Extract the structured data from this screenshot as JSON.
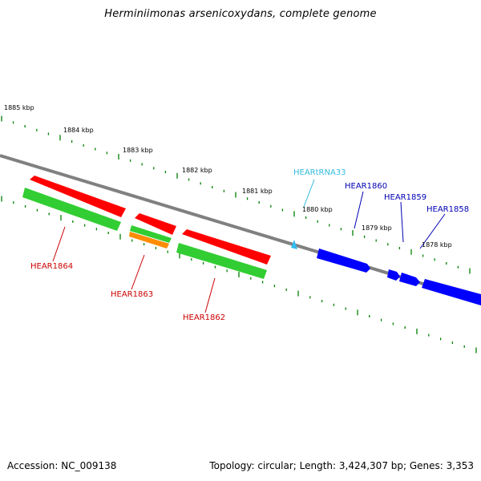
{
  "title": "Herminiimonas arsenicoxydans, complete genome",
  "accession": "Accession: NC_009138",
  "summary": "Topology: circular; Length: 3,424,307 bp; Genes: 3,353",
  "colors": {
    "backbone": "#808080",
    "ticks": "#008000",
    "forward_genes": "#ff0000",
    "reverse_genes": "#32cd32",
    "other_gene": "#ff8c00",
    "right_genes": "#0000ff",
    "trna": "#33bbee",
    "label_red": "#cc0000",
    "label_blue": "#0000b3",
    "label_cyan": "#33bbdd"
  },
  "scale_labels": [
    "1885 kbp",
    "1884 kbp",
    "1883 kbp",
    "1882 kbp",
    "1881 kbp",
    "1880 kbp",
    "1879 kbp",
    "1878 kbp"
  ],
  "gene_labels": [
    "HEAR1864",
    "HEAR1863",
    "HEAR1862",
    "HEARtRNA33",
    "HEAR1860",
    "HEAR1859",
    "HEAR1858"
  ]
}
